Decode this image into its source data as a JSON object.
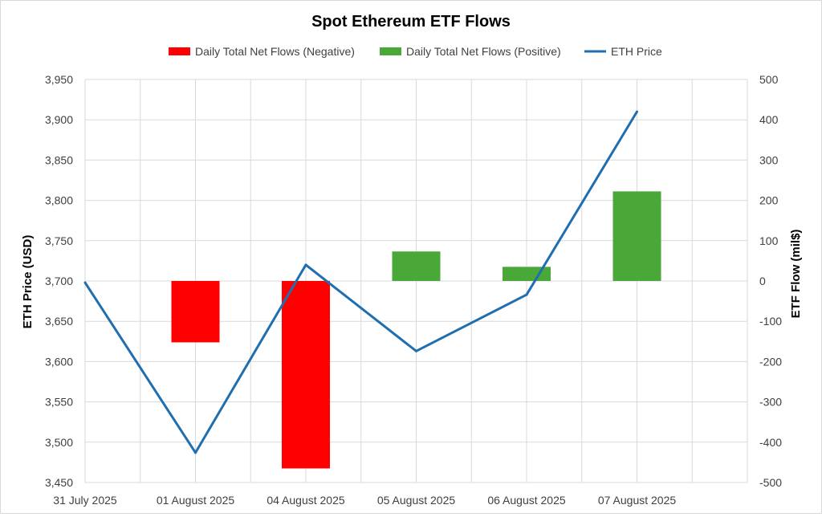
{
  "chart_data": {
    "type": "bar+line",
    "title": "Spot Ethereum ETF Flows",
    "categories": [
      "31 July 2025",
      "01 August 2025",
      "04 August 2025",
      "05 August 2025",
      "06 August 2025",
      "07 August 2025"
    ],
    "series": [
      {
        "name": "Daily Total Net Flows (Negative)",
        "kind": "bar",
        "axis": "right",
        "color": "#ff0000",
        "values": [
          null,
          -152.3,
          -465.1,
          null,
          null,
          null
        ]
      },
      {
        "name": "Daily Total Net Flows (Positive)",
        "kind": "bar",
        "axis": "right",
        "color": "#4aa839",
        "values": [
          null,
          null,
          null,
          73.2,
          35.1,
          222.3
        ]
      },
      {
        "name": "ETH Price",
        "kind": "line",
        "axis": "left",
        "color": "#1f6fb0",
        "values": [
          3698,
          3487,
          3720,
          3613,
          3683,
          3910
        ]
      }
    ],
    "ylabel": "ETH Price (USD)",
    "y2label": "ETF Flow (mil$)",
    "ylim": [
      3450,
      3950
    ],
    "y2lim": [
      -500,
      500
    ],
    "yticks": [
      "3,450",
      "3,500",
      "3,550",
      "3,600",
      "3,650",
      "3,700",
      "3,750",
      "3,800",
      "3,850",
      "3,900",
      "3,950"
    ],
    "y2ticks": [
      "-500",
      "-400",
      "-300",
      "-200",
      "-100",
      "0",
      "100",
      "200",
      "300",
      "400",
      "500"
    ],
    "grid": true,
    "legend_position": "top"
  }
}
